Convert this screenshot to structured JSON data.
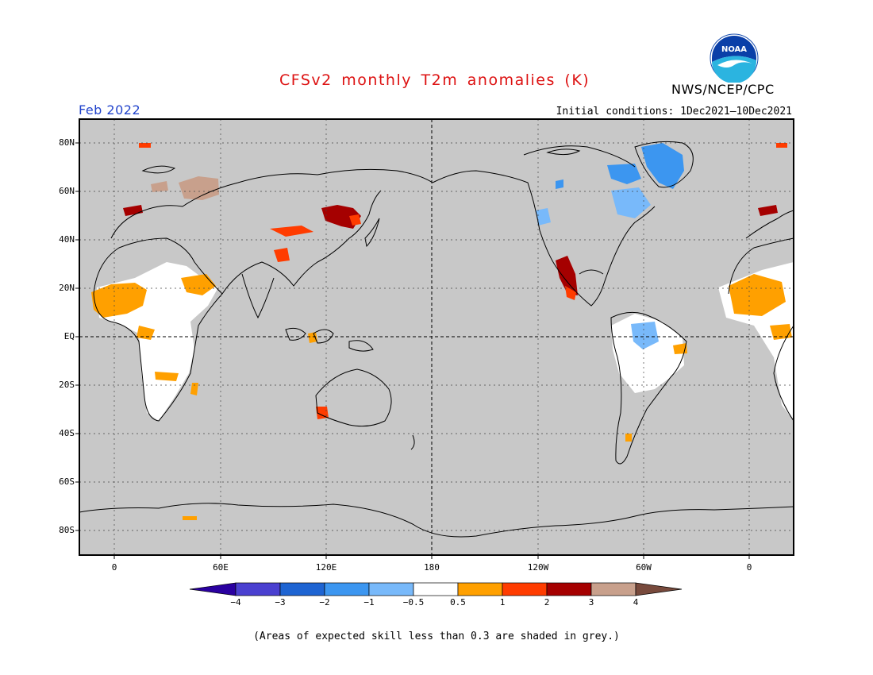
{
  "header": {
    "title": "CFSv2 monthly T2m anomalies (K)",
    "title_color": "#dd1111",
    "org": "NWS/NCEP/CPC",
    "period": "Feb 2022",
    "period_color": "#2244cc",
    "initial_conditions": "Initial conditions: 1Dec2021—10Dec2021",
    "logo_icon": "noaa-logo-icon",
    "logo_text": "NOAA"
  },
  "map": {
    "projection": "cylindrical-equidistant",
    "land_colors": {
      "grey": "#c8c8c8",
      "low_skill": "#ffffff"
    },
    "lat_labels": [
      "80N",
      "60N",
      "40N",
      "20N",
      "EQ",
      "20S",
      "40S",
      "60S",
      "80S"
    ],
    "lon_labels": [
      "0",
      "60E",
      "120E",
      "180",
      "120W",
      "60W",
      "0"
    ],
    "grid": true,
    "anomaly_regions": [
      {
        "region": "Greenland / NE Canada",
        "category": "-2 to -1"
      },
      {
        "region": "Quebec",
        "category": "-1 to -0.5"
      },
      {
        "region": "NW United States",
        "category": "-1 to -0.5"
      },
      {
        "region": "Mexico",
        "category": "2 to 3"
      },
      {
        "region": "NE China / Mongolia",
        "category": "2 to 3"
      },
      {
        "region": "Russia (Urals)",
        "category": "3 to 4"
      },
      {
        "region": "Sahel / West Africa",
        "category": "0.5 to 1"
      },
      {
        "region": "Southern Africa",
        "category": "0.5 to 1"
      },
      {
        "region": "SW Australia",
        "category": "1 to 2"
      },
      {
        "region": "Amazon",
        "category": "-1 to -0.5"
      }
    ]
  },
  "colorbar": {
    "ticks": [
      "−4",
      "−3",
      "−2",
      "−1",
      "−0.5",
      "0.5",
      "1",
      "2",
      "3",
      "4"
    ],
    "bins": [
      {
        "range": "< -4",
        "color": "#2a00a0"
      },
      {
        "range": "-4 to -3",
        "color": "#4a40d0"
      },
      {
        "range": "-3 to -2",
        "color": "#1e64d2"
      },
      {
        "range": "-2 to -1",
        "color": "#3c96f0"
      },
      {
        "range": "-1 to -0.5",
        "color": "#78b9fa"
      },
      {
        "range": "-0.5 to 0.5",
        "color": "#ffffff"
      },
      {
        "range": "0.5 to 1",
        "color": "#ffa000"
      },
      {
        "range": "1 to 2",
        "color": "#ff3c00"
      },
      {
        "range": "2 to 3",
        "color": "#a50000"
      },
      {
        "range": "3 to 4",
        "color": "#c8a08c"
      },
      {
        "range": "> 4",
        "color": "#784a3c"
      }
    ]
  },
  "footnote": "(Areas of expected skill less than 0.3 are shaded in grey.)"
}
